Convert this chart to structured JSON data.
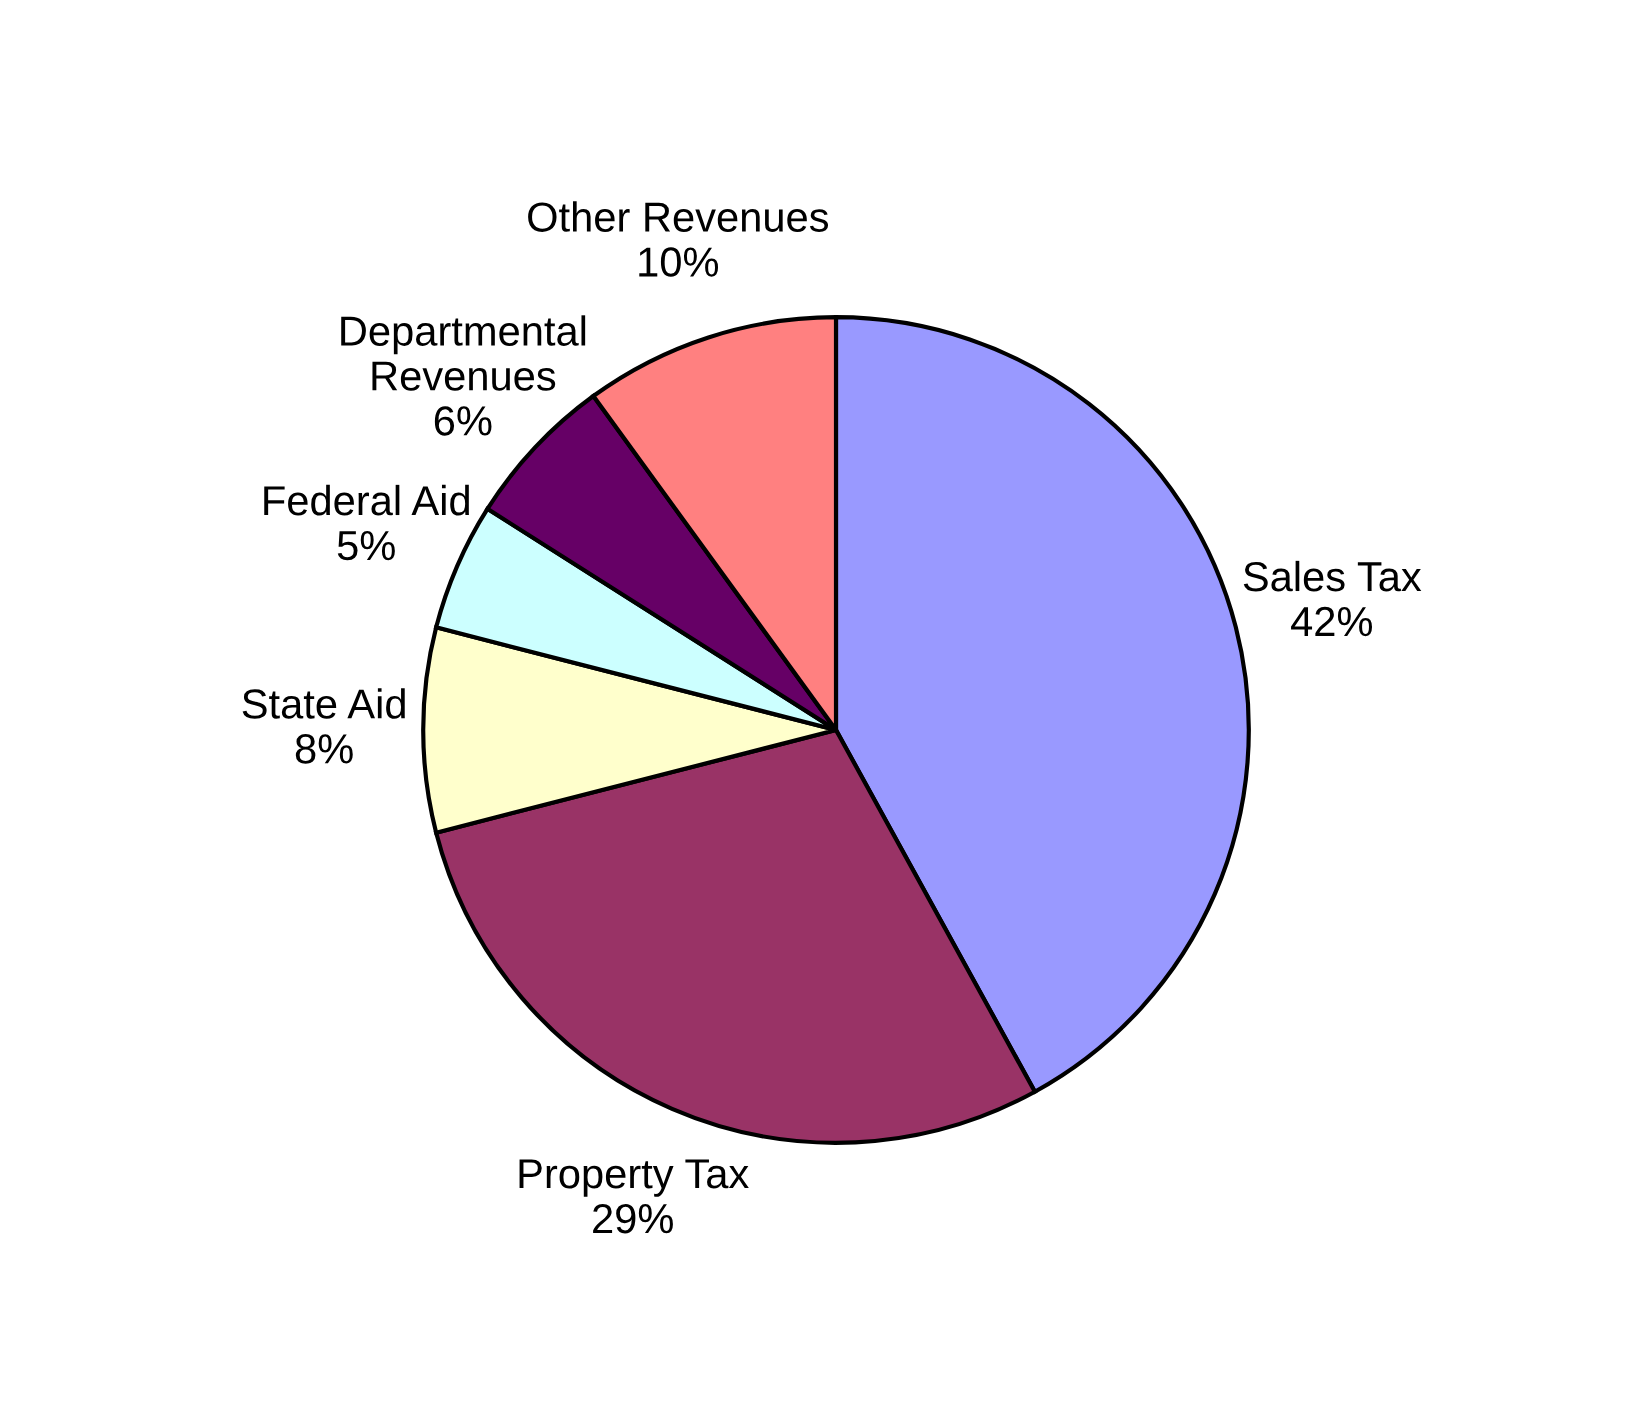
{
  "chart_data": {
    "type": "pie",
    "categories": [
      "Sales Tax",
      "Property Tax",
      "State Aid",
      "Federal Aid",
      "Departmental\nRevenues",
      "Other Revenues"
    ],
    "values": [
      42,
      29,
      8,
      5,
      6,
      10
    ],
    "value_labels": [
      "42%",
      "29%",
      "8%",
      "5%",
      "6%",
      "10%"
    ],
    "colors": [
      "#9999ff",
      "#993366",
      "#ffffcc",
      "#ccffff",
      "#660066",
      "#ff8080"
    ],
    "legend": false
  }
}
